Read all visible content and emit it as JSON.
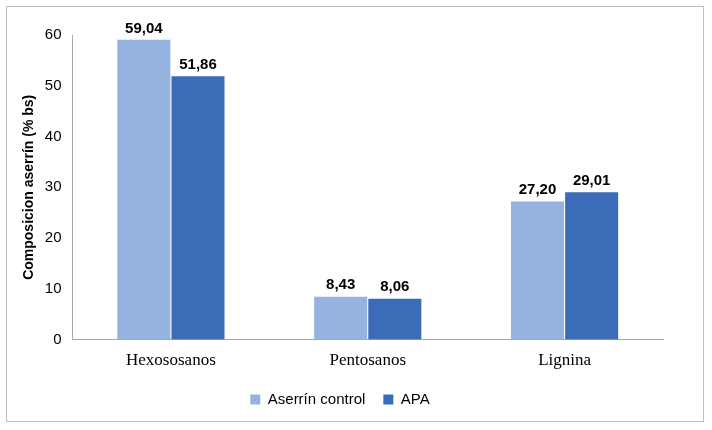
{
  "chart_data": {
    "type": "bar",
    "y_label": "Composicion aserrín (% bs)",
    "categories": [
      "Hexososanos",
      "Pentosanos",
      "Lignina"
    ],
    "series": [
      {
        "name": "Aserrín control",
        "color": "#95b3e0",
        "values": [
          59.04,
          8.43,
          27.2
        ],
        "value_labels": [
          "59,04",
          "8,43",
          "27,20"
        ]
      },
      {
        "name": "APA",
        "color": "#3a6cb8",
        "values": [
          51.86,
          8.06,
          29.01
        ],
        "value_labels": [
          "51,86",
          "8,06",
          "29,01"
        ]
      }
    ],
    "ylim": [
      0,
      60
    ],
    "yticks": [
      0,
      10,
      20,
      30,
      40,
      50,
      60
    ],
    "grid": false,
    "legend": "bottom",
    "data_labels": true
  }
}
